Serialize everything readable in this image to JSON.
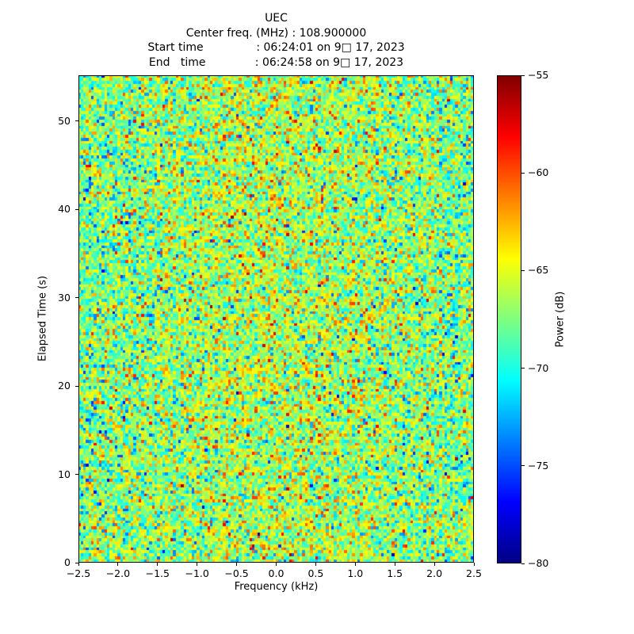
{
  "chart_data": {
    "type": "heatmap",
    "title_lines": [
      "UEC",
      "Center freq. (MHz) : 108.900000",
      "Start time               : 06:24:01 on 9□ 17, 2023",
      "End   time              : 06:24:58 on 9□ 17, 2023"
    ],
    "xlabel": "Frequency (kHz)",
    "ylabel": "Elapsed Time (s)",
    "xlim": [
      -2.5,
      2.5
    ],
    "ylim": [
      0,
      55.2
    ],
    "xticks": {
      "values": [
        -2.5,
        -2.0,
        -1.5,
        -1.0,
        -0.5,
        0.0,
        0.5,
        1.0,
        1.5,
        2.0,
        2.5
      ],
      "labels": [
        "−2.5",
        "−2.0",
        "−1.5",
        "−1.0",
        "−0.5",
        "0.0",
        "0.5",
        "1.0",
        "1.5",
        "2.0",
        "2.5"
      ]
    },
    "yticks": {
      "values": [
        0,
        10,
        20,
        30,
        40,
        50
      ],
      "labels": [
        "0",
        "10",
        "20",
        "30",
        "40",
        "50"
      ]
    },
    "colorbar": {
      "label": "Power (dB)",
      "vmin": -80,
      "vmax": -55,
      "colormap": "jet",
      "ticks": {
        "values": [
          -55,
          -60,
          -65,
          -70,
          -75,
          -80
        ],
        "labels": [
          "−55",
          "−60",
          "−65",
          "−70",
          "−75",
          "−80"
        ]
      }
    },
    "noise_field": {
      "description": "broadband random noise speckle; no visible narrowband signal",
      "rows": 163,
      "cols": 150,
      "mean_db": -68,
      "sigma_db": 3.2,
      "center_freq_hump_db": 1.8,
      "seed": 42
    }
  }
}
